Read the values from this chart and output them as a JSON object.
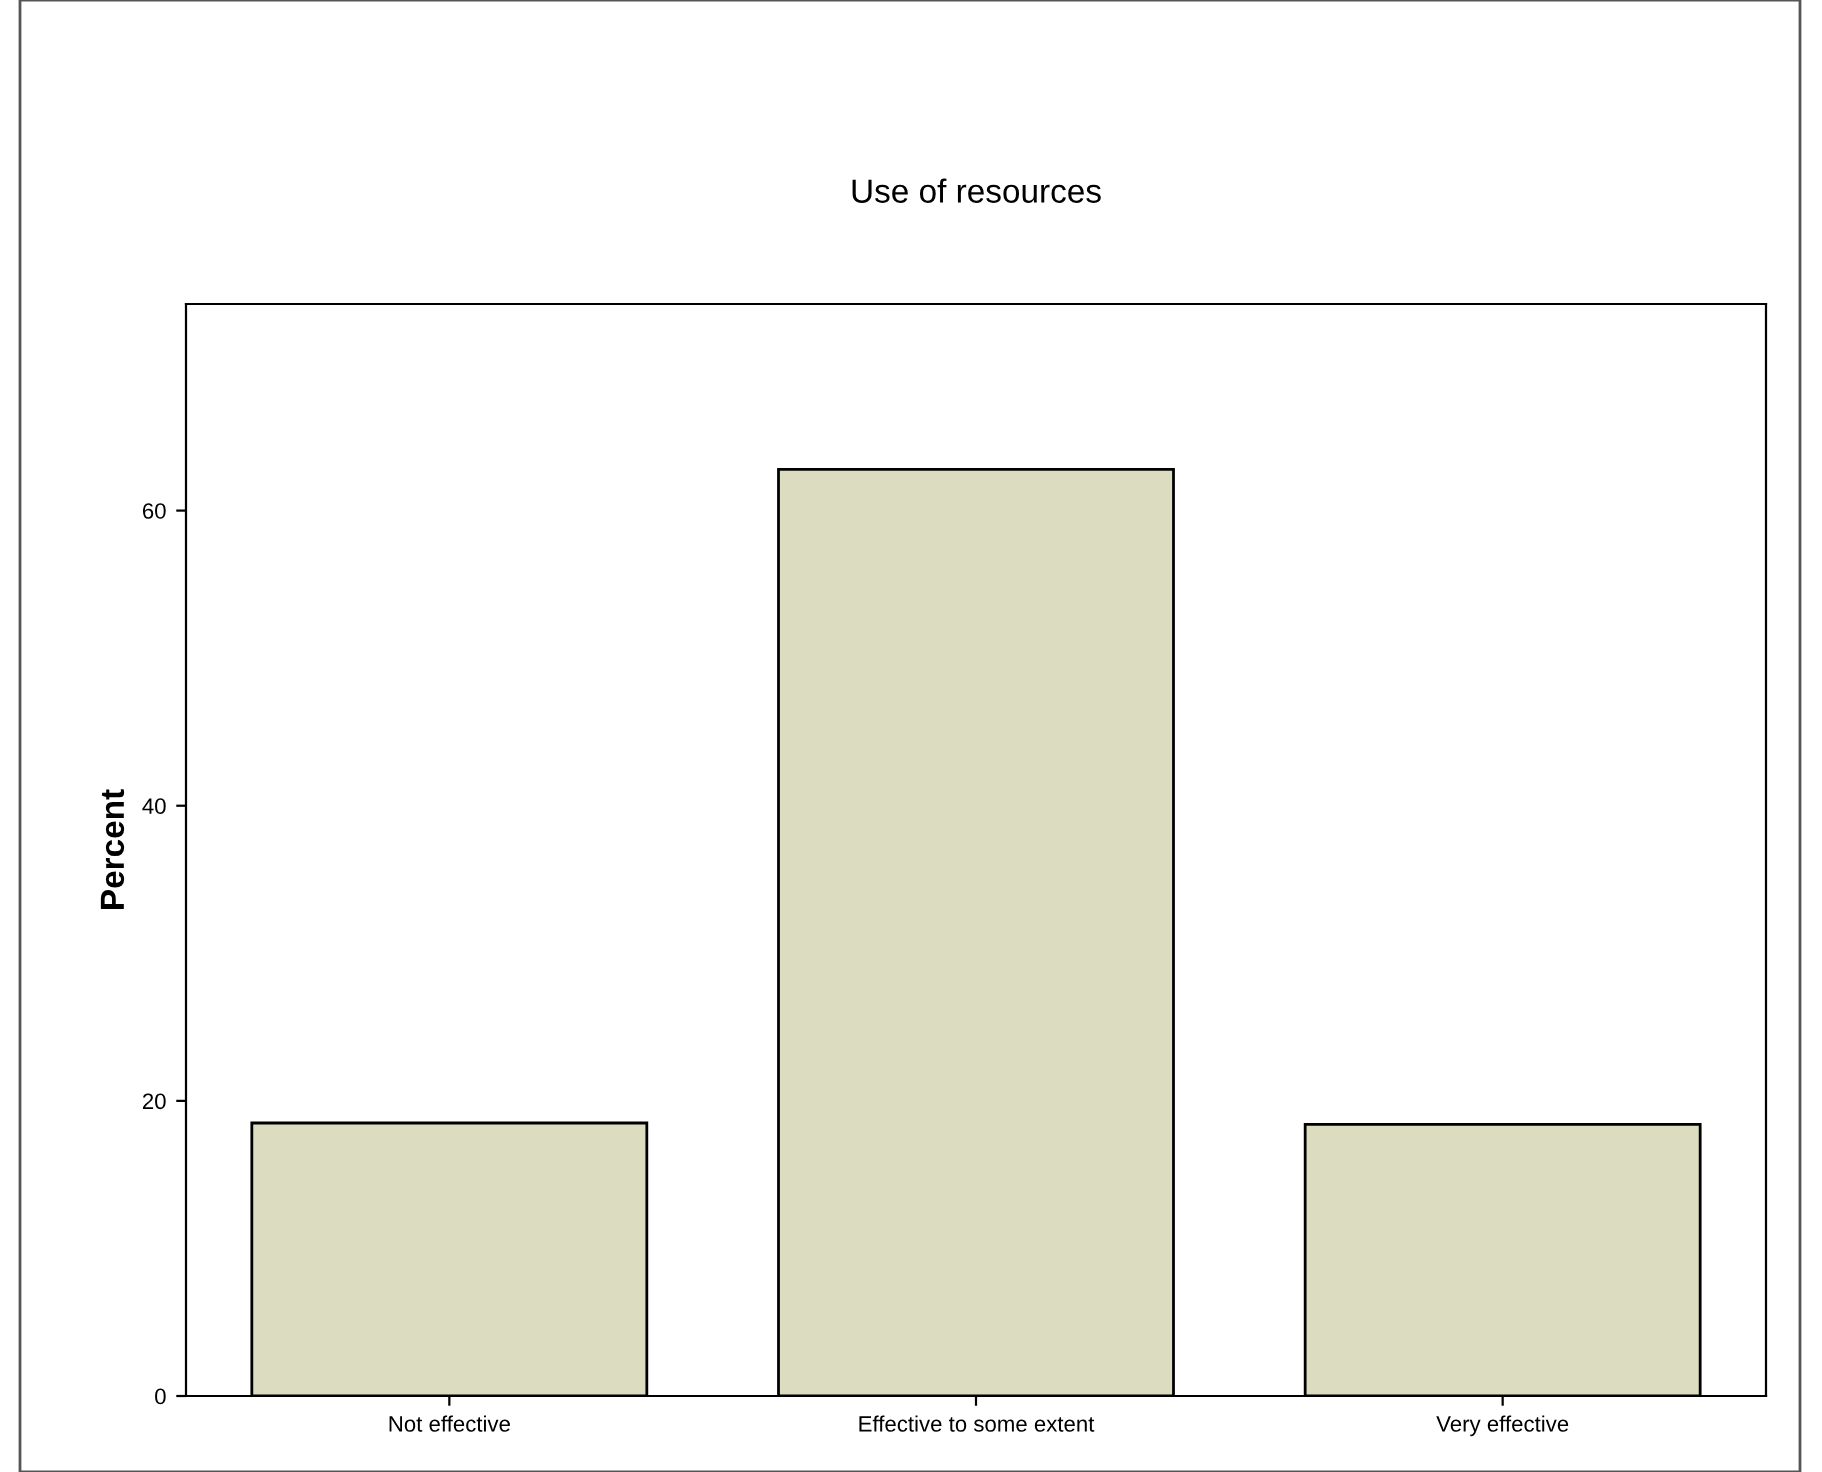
{
  "chart_data": {
    "type": "bar",
    "title": "Use of resources",
    "ylabel": "Percent",
    "categories": [
      "Not effective",
      "Effective to some extent",
      "Very effective"
    ],
    "values": [
      18.5,
      62.8,
      18.4
    ],
    "color": "#dcdcc0",
    "ylim": [
      0,
      74
    ],
    "yticks": [
      0,
      20,
      40,
      60
    ],
    "grid": false,
    "legend": false
  }
}
